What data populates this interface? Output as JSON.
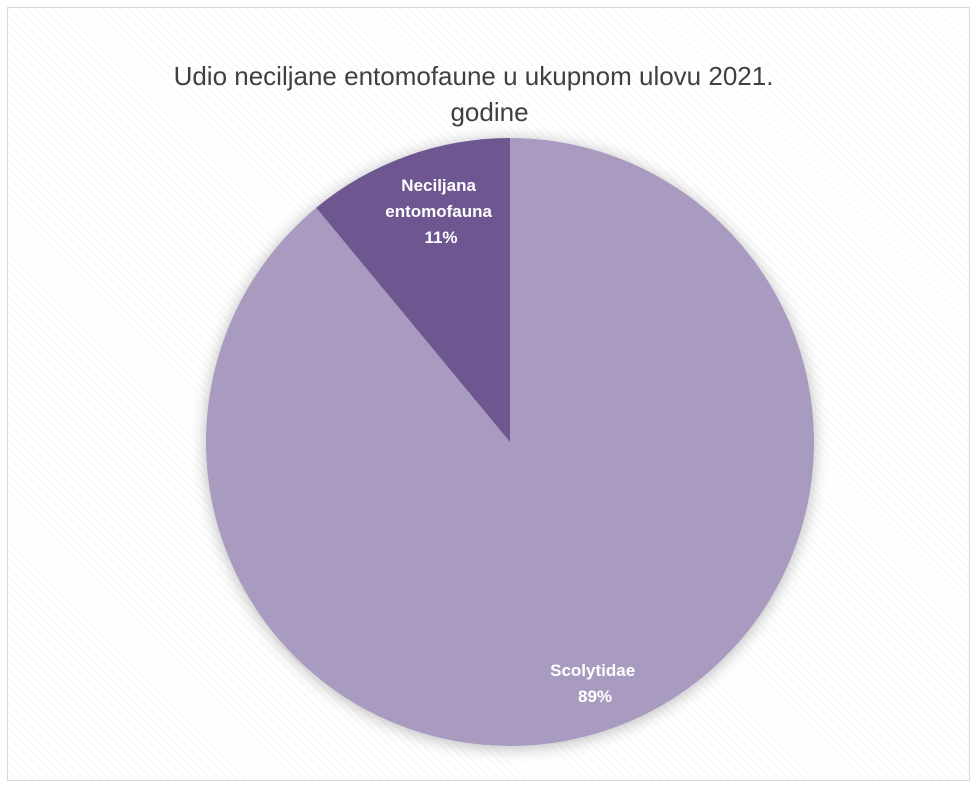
{
  "chart_data": {
    "type": "pie",
    "title_lines": [
      "Udio neciljane entomofaune u ukupnom ulovu 2021.",
      "godine"
    ],
    "slices": [
      {
        "label": "Scolytidae",
        "value": 89,
        "percent_label": "89%",
        "color": "#a99bc0"
      },
      {
        "label_lines": [
          "Neciljana",
          "entomofauna"
        ],
        "value": 11,
        "percent_label": "11%",
        "color": "#6e5690"
      }
    ],
    "legend": "none",
    "data_labels": "inside"
  }
}
